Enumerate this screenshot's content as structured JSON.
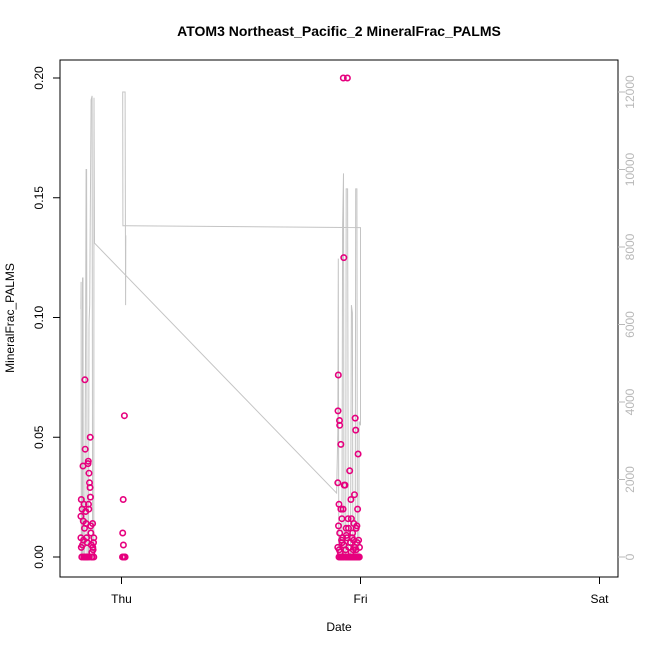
{
  "chart_data": {
    "type": "scatter",
    "title": "ATOM3 Northeast_Pacific_2 MineralFrac_PALMS",
    "xlabel": "Date",
    "ylabel": "MineralFrac_PALMS",
    "x_ticks": [
      "Thu",
      "Fri",
      "Sat"
    ],
    "ylim": [
      0,
      0.2
    ],
    "y_ticks": [
      "0.00",
      "0.05",
      "0.10",
      "0.15",
      "0.20"
    ],
    "y2lim": [
      0,
      12000
    ],
    "y2_ticks": [
      "0",
      "2000",
      "4000",
      "6000",
      "8000",
      "10000",
      "12000"
    ],
    "colors": {
      "points": "#e6007e",
      "line": "#c4c4c4",
      "axis": "#000000",
      "axis_right": "#b8b8b8"
    },
    "series": [
      {
        "kind": "points",
        "points": [
          {
            "x": -0.17,
            "y": 0.008
          },
          {
            "x": -0.17,
            "y": 0.017
          },
          {
            "x": -0.168,
            "y": 0.024
          },
          {
            "x": -0.168,
            "y": 0.004
          },
          {
            "x": -0.165,
            "y": 0.02
          },
          {
            "x": -0.163,
            "y": 0.005
          },
          {
            "x": -0.161,
            "y": 0.038
          },
          {
            "x": -0.16,
            "y": 0.015
          },
          {
            "x": -0.158,
            "y": 0.0
          },
          {
            "x": -0.157,
            "y": 0.022
          },
          {
            "x": -0.155,
            "y": 0.012
          },
          {
            "x": -0.153,
            "y": 0.074
          },
          {
            "x": -0.152,
            "y": 0.045
          },
          {
            "x": -0.15,
            "y": 0.019
          },
          {
            "x": -0.15,
            "y": 0.0
          },
          {
            "x": -0.148,
            "y": 0.014
          },
          {
            "x": -0.146,
            "y": 0.008
          },
          {
            "x": -0.145,
            "y": 0.0
          },
          {
            "x": -0.143,
            "y": 0.006
          },
          {
            "x": -0.14,
            "y": 0.039
          },
          {
            "x": -0.139,
            "y": 0.04
          },
          {
            "x": -0.138,
            "y": 0.022
          },
          {
            "x": -0.137,
            "y": 0.02
          },
          {
            "x": -0.136,
            "y": 0.035
          },
          {
            "x": -0.134,
            "y": 0.031
          },
          {
            "x": -0.132,
            "y": 0.029
          },
          {
            "x": -0.131,
            "y": 0.05
          },
          {
            "x": -0.13,
            "y": 0.025
          },
          {
            "x": -0.129,
            "y": 0.013
          },
          {
            "x": -0.128,
            "y": 0.01
          },
          {
            "x": -0.126,
            "y": 0.005
          },
          {
            "x": -0.124,
            "y": 0.002
          },
          {
            "x": -0.123,
            "y": 0.0
          },
          {
            "x": -0.121,
            "y": 0.014
          },
          {
            "x": -0.12,
            "y": 0.004
          },
          {
            "x": -0.119,
            "y": 0.003
          },
          {
            "x": -0.117,
            "y": 0.006
          },
          {
            "x": -0.116,
            "y": 0.008
          },
          {
            "x": -0.116,
            "y": 0.0
          },
          {
            "x": -0.135,
            "y": 0.0
          },
          {
            "x": -0.142,
            "y": 0.0
          },
          {
            "x": -0.125,
            "y": 0.0
          },
          {
            "x": -0.166,
            "y": 0.0
          },
          {
            "x": -0.159,
            "y": 0.007
          },
          {
            "x": -0.154,
            "y": 0.0
          },
          {
            "x": -0.147,
            "y": 0.0
          },
          {
            "x": 0.005,
            "y": 0.01
          },
          {
            "x": 0.007,
            "y": 0.024
          },
          {
            "x": 0.008,
            "y": 0.005
          },
          {
            "x": 0.009,
            "y": 0.0
          },
          {
            "x": 0.012,
            "y": 0.059
          },
          {
            "x": 0.004,
            "y": 0.0
          },
          {
            "x": 0.011,
            "y": 0.0
          },
          {
            "x": 0.013,
            "y": 0.0
          },
          {
            "x": 0.015,
            "y": 0.0
          },
          {
            "x": 0.905,
            "y": 0.004
          },
          {
            "x": 0.905,
            "y": 0.031
          },
          {
            "x": 0.906,
            "y": 0.061
          },
          {
            "x": 0.907,
            "y": 0.076
          },
          {
            "x": 0.908,
            "y": 0.013
          },
          {
            "x": 0.91,
            "y": 0.022
          },
          {
            "x": 0.912,
            "y": 0.057
          },
          {
            "x": 0.913,
            "y": 0.055
          },
          {
            "x": 0.915,
            "y": 0.002
          },
          {
            "x": 0.918,
            "y": 0.047
          },
          {
            "x": 0.92,
            "y": 0.0
          },
          {
            "x": 0.922,
            "y": 0.016
          },
          {
            "x": 0.925,
            "y": 0.008
          },
          {
            "x": 0.928,
            "y": 0.2
          },
          {
            "x": 0.93,
            "y": 0.125
          },
          {
            "x": 0.932,
            "y": 0.03
          },
          {
            "x": 0.935,
            "y": 0.03
          },
          {
            "x": 0.94,
            "y": 0.012
          },
          {
            "x": 0.945,
            "y": 0.2
          },
          {
            "x": 0.948,
            "y": 0.016
          },
          {
            "x": 0.955,
            "y": 0.036
          },
          {
            "x": 0.96,
            "y": 0.024
          },
          {
            "x": 0.965,
            "y": 0.008
          },
          {
            "x": 0.97,
            "y": 0.003
          },
          {
            "x": 0.975,
            "y": 0.026
          },
          {
            "x": 0.978,
            "y": 0.058
          },
          {
            "x": 0.98,
            "y": 0.053
          },
          {
            "x": 0.985,
            "y": 0.013
          },
          {
            "x": 0.988,
            "y": 0.02
          },
          {
            "x": 0.99,
            "y": 0.043
          },
          {
            "x": 0.992,
            "y": 0.007
          },
          {
            "x": 0.993,
            "y": 0.0
          },
          {
            "x": 0.91,
            "y": 0.0
          },
          {
            "x": 0.93,
            "y": 0.0
          },
          {
            "x": 0.95,
            "y": 0.0
          },
          {
            "x": 0.96,
            "y": 0.0
          },
          {
            "x": 0.97,
            "y": 0.0
          },
          {
            "x": 0.98,
            "y": 0.0
          },
          {
            "x": 0.99,
            "y": 0.0
          },
          {
            "x": 0.937,
            "y": 0.0
          },
          {
            "x": 0.942,
            "y": 0.0
          },
          {
            "x": 0.953,
            "y": 0.0
          },
          {
            "x": 0.963,
            "y": 0.0
          },
          {
            "x": 0.973,
            "y": 0.0
          },
          {
            "x": 0.983,
            "y": 0.0
          },
          {
            "x": 0.913,
            "y": 0.01
          },
          {
            "x": 0.918,
            "y": 0.02
          },
          {
            "x": 0.923,
            "y": 0.006
          },
          {
            "x": 0.927,
            "y": 0.02
          },
          {
            "x": 0.938,
            "y": 0.003
          },
          {
            "x": 0.943,
            "y": 0.008
          },
          {
            "x": 0.95,
            "y": 0.012
          },
          {
            "x": 0.958,
            "y": 0.006
          },
          {
            "x": 0.962,
            "y": 0.016
          },
          {
            "x": 0.967,
            "y": 0.01
          },
          {
            "x": 0.972,
            "y": 0.014
          },
          {
            "x": 0.977,
            "y": 0.004
          },
          {
            "x": 0.982,
            "y": 0.012
          },
          {
            "x": 0.986,
            "y": 0.006
          },
          {
            "x": 0.995,
            "y": 0.0
          },
          {
            "x": 0.996,
            "y": 0.004
          },
          {
            "x": 0.916,
            "y": 0.0
          },
          {
            "x": 0.926,
            "y": 0.0
          },
          {
            "x": 0.946,
            "y": 0.0
          },
          {
            "x": 0.956,
            "y": 0.0
          },
          {
            "x": 0.966,
            "y": 0.0
          },
          {
            "x": 0.976,
            "y": 0.0
          },
          {
            "x": 0.986,
            "y": 0.0
          },
          {
            "x": 0.911,
            "y": 0.003
          },
          {
            "x": 0.921,
            "y": 0.007
          },
          {
            "x": 0.931,
            "y": 0.005
          },
          {
            "x": 0.941,
            "y": 0.009
          },
          {
            "x": 0.951,
            "y": 0.004
          },
          {
            "x": 0.961,
            "y": 0.002
          },
          {
            "x": 0.971,
            "y": 0.007
          },
          {
            "x": 0.981,
            "y": 0.003
          }
        ]
      },
      {
        "kind": "line",
        "axis": "right",
        "points": [
          {
            "x": -0.17,
            "y": 6400
          },
          {
            "x": -0.169,
            "y": 7100
          },
          {
            "x": -0.168,
            "y": 0
          },
          {
            "x": -0.164,
            "y": 0
          },
          {
            "x": -0.163,
            "y": 7200
          },
          {
            "x": -0.161,
            "y": 7200
          },
          {
            "x": -0.16,
            "y": 0
          },
          {
            "x": -0.154,
            "y": 0
          },
          {
            "x": -0.15,
            "y": 6500
          },
          {
            "x": -0.148,
            "y": 10000
          },
          {
            "x": -0.146,
            "y": 10000
          },
          {
            "x": -0.144,
            "y": 0
          },
          {
            "x": -0.138,
            "y": 0
          },
          {
            "x": -0.136,
            "y": 6000
          },
          {
            "x": -0.133,
            "y": 6500
          },
          {
            "x": -0.131,
            "y": 8500
          },
          {
            "x": -0.128,
            "y": 11000
          },
          {
            "x": -0.127,
            "y": 11800
          },
          {
            "x": -0.123,
            "y": 11900
          },
          {
            "x": -0.121,
            "y": 0
          },
          {
            "x": -0.119,
            "y": 0
          },
          {
            "x": -0.116,
            "y": 0
          },
          {
            "x": -0.115,
            "y": 11850
          },
          {
            "x": -0.113,
            "y": 8100
          },
          {
            "x": 0.9,
            "y": 1650
          },
          {
            "x": 0.905,
            "y": 3200
          },
          {
            "x": 0.907,
            "y": 7700
          },
          {
            "x": 0.909,
            "y": 0
          },
          {
            "x": 0.922,
            "y": 0
          },
          {
            "x": 0.925,
            "y": 8500
          },
          {
            "x": 0.929,
            "y": 9900
          },
          {
            "x": 0.931,
            "y": 0
          },
          {
            "x": 0.938,
            "y": 0
          },
          {
            "x": 0.94,
            "y": 9500
          },
          {
            "x": 0.946,
            "y": 9500
          },
          {
            "x": 0.949,
            "y": 0
          },
          {
            "x": 0.958,
            "y": 0
          },
          {
            "x": 0.962,
            "y": 6500
          },
          {
            "x": 0.966,
            "y": 6300
          },
          {
            "x": 0.968,
            "y": 0
          },
          {
            "x": 0.978,
            "y": 0
          },
          {
            "x": 0.98,
            "y": 9500
          },
          {
            "x": 0.985,
            "y": 9500
          },
          {
            "x": 0.987,
            "y": 0
          },
          {
            "x": 0.993,
            "y": 0
          },
          {
            "x": 0.994,
            "y": 3500
          },
          {
            "x": 1.0,
            "y": 3400
          },
          {
            "x": 1.0,
            "y": 8500
          },
          {
            "x": 0.01,
            "y": 8550
          },
          {
            "x": 0.006,
            "y": 8550
          },
          {
            "x": 0.005,
            "y": 12000
          },
          {
            "x": 0.015,
            "y": 12000
          },
          {
            "x": 0.017,
            "y": 6500
          },
          {
            "x": 0.018,
            "y": 8300
          }
        ]
      }
    ]
  }
}
